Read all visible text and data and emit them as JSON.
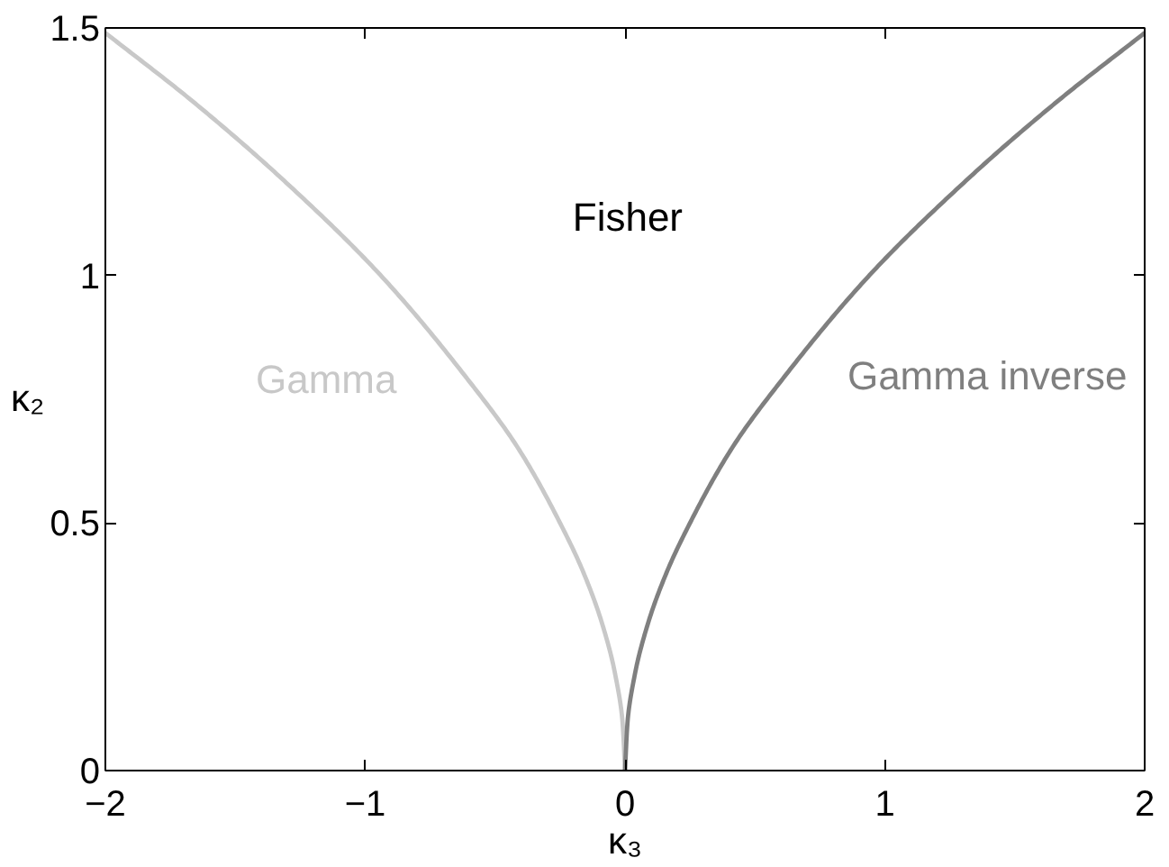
{
  "chart_data": {
    "type": "line",
    "xlabel": "κ₃",
    "ylabel": "κ₂",
    "annotations": [
      "Fisher"
    ],
    "series": [
      {
        "name": "Gamma",
        "color": "#c8c8c8",
        "x": [
          -2,
          -1.66,
          -1.33,
          -0.94,
          -0.62,
          -0.41,
          -0.25,
          -0.16,
          -0.09,
          -0.04,
          -0.01,
          0
        ],
        "values": [
          1.49,
          1.35,
          1.2,
          1.0,
          0.8,
          0.65,
          0.5,
          0.4,
          0.3,
          0.2,
          0.1,
          0
        ]
      },
      {
        "name": "Gamma inverse",
        "color": "#7f7f7f",
        "x": [
          0,
          0.01,
          0.04,
          0.09,
          0.16,
          0.25,
          0.41,
          0.62,
          0.94,
          1.33,
          1.66,
          2
        ],
        "values": [
          0,
          0.1,
          0.2,
          0.3,
          0.4,
          0.5,
          0.65,
          0.8,
          1.0,
          1.2,
          1.35,
          1.49
        ]
      }
    ],
    "xlim": [
      -2,
      2
    ],
    "ylim": [
      0,
      1.5
    ],
    "xticks": [
      {
        "value": -2,
        "label": "−2"
      },
      {
        "value": -1,
        "label": "−1"
      },
      0,
      1,
      2
    ],
    "yticks": [
      0,
      0.5,
      1,
      1.5
    ],
    "grid": false,
    "line_style": "solid"
  }
}
